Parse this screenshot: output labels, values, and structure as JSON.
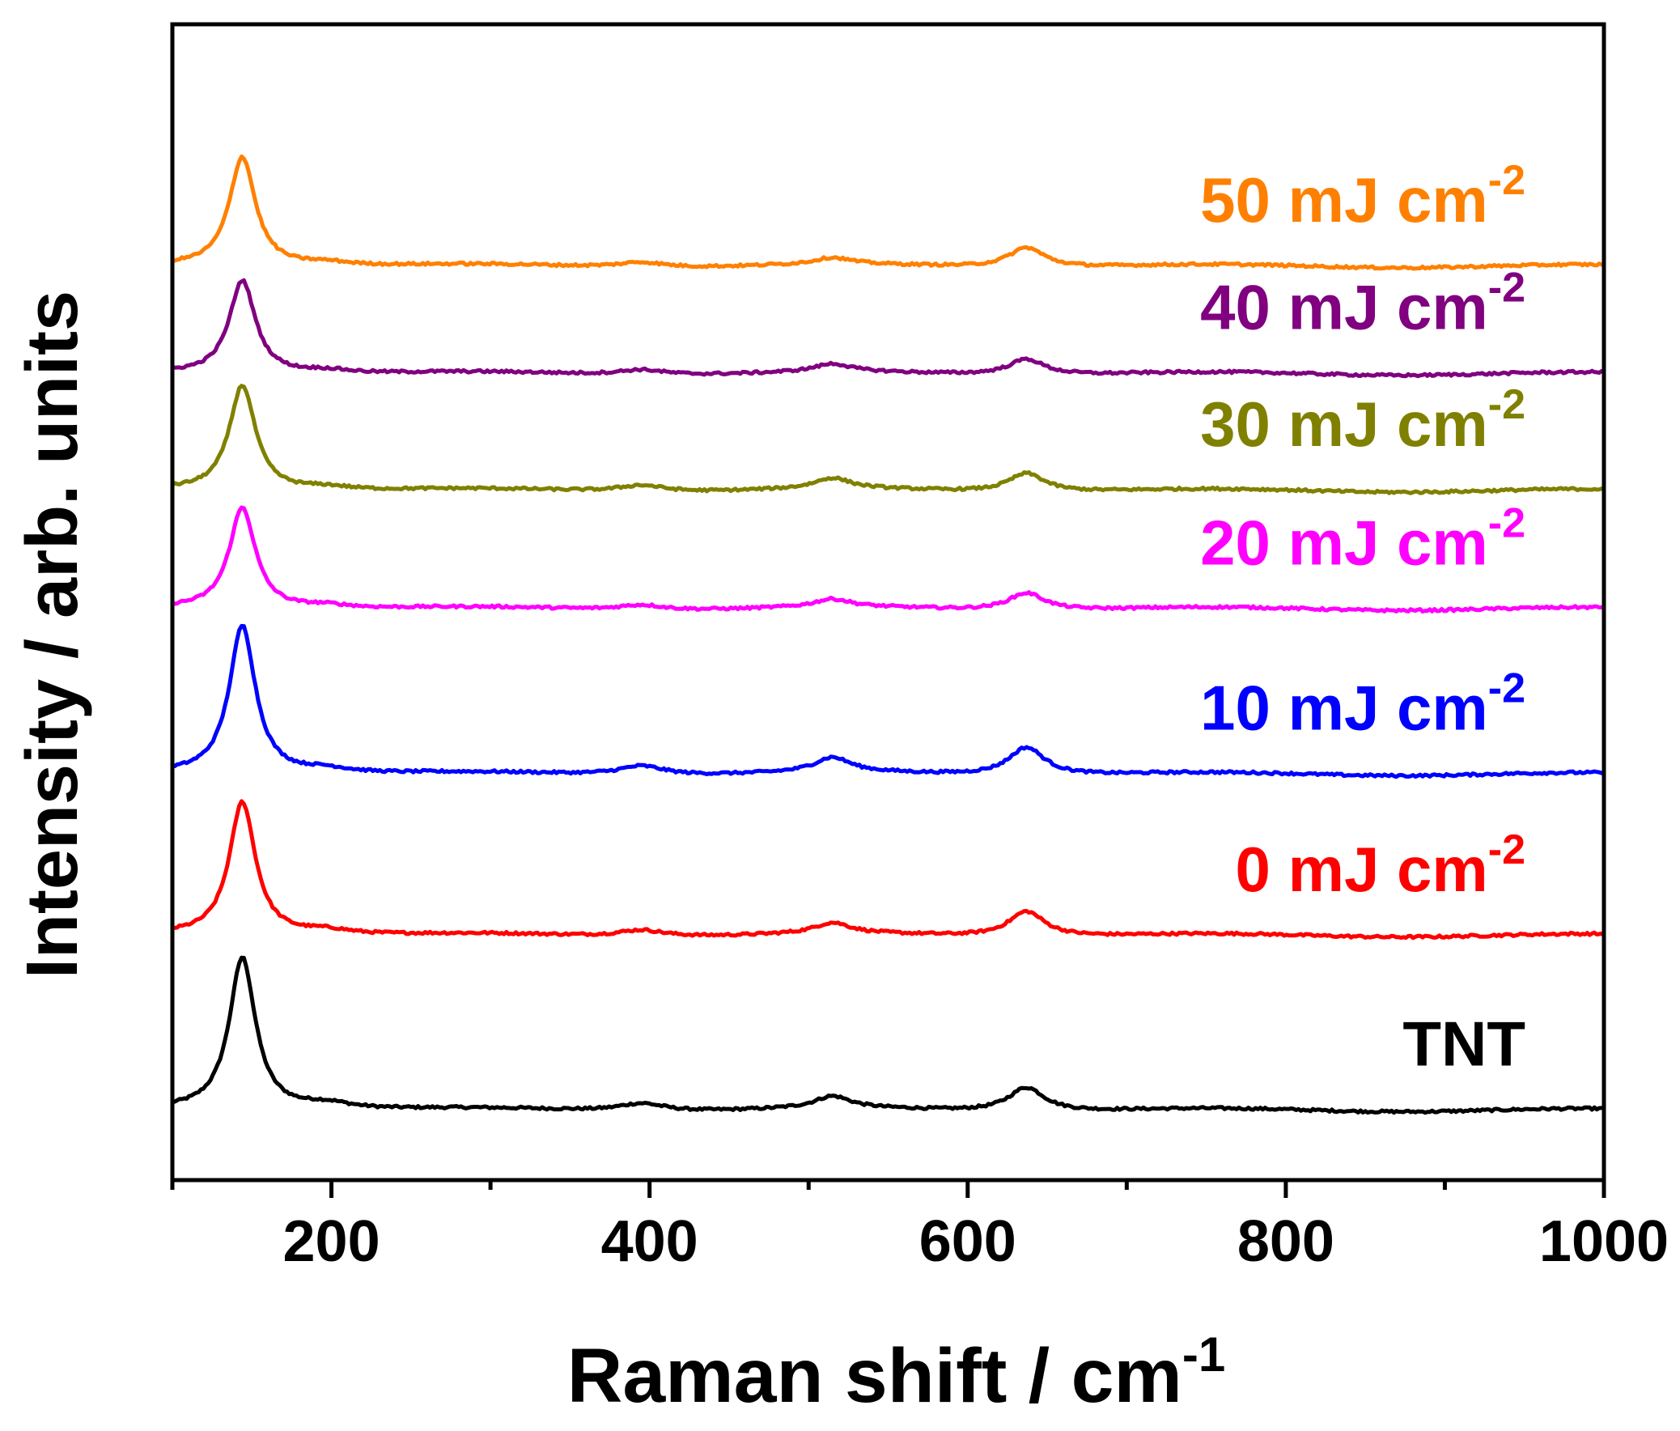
{
  "chart_data": {
    "type": "line",
    "title": "",
    "xlabel": "Raman shift / cm",
    "xlabel_sup": "-1",
    "ylabel": "Intensity / arb. units",
    "xlim": [
      100,
      1000
    ],
    "ylim": [
      0,
      8.6
    ],
    "x_ticks": [
      200,
      400,
      600,
      800,
      1000
    ],
    "x_minor_ticks": [
      100,
      300,
      500,
      700,
      900
    ],
    "y_tick_labels": false,
    "grid": false,
    "legend": "inline labels at right of each trace",
    "series": [
      {
        "name": "TNT",
        "label": "TNT",
        "label_sup": "",
        "color": "#000000",
        "baseline": 0.52,
        "peaks": [
          [
            144,
            1.14,
            10
          ],
          [
            197,
            0.05,
            20
          ],
          [
            395,
            0.06,
            18
          ],
          [
            515,
            0.09,
            14
          ],
          [
            637,
            0.18,
            14
          ]
        ]
      },
      {
        "name": "0 mJ cm-2",
        "label": "0 mJ cm",
        "label_sup": "-2",
        "color": "#ff0000",
        "baseline": 1.82,
        "peaks": [
          [
            144,
            1.0,
            10
          ],
          [
            197,
            0.04,
            20
          ],
          [
            395,
            0.05,
            18
          ],
          [
            515,
            0.08,
            14
          ],
          [
            637,
            0.19,
            14
          ]
        ]
      },
      {
        "name": "10 mJ cm-2",
        "label": "10 mJ cm",
        "label_sup": "-2",
        "color": "#0000ff",
        "baseline": 3.02,
        "peaks": [
          [
            144,
            1.11,
            10
          ],
          [
            197,
            0.04,
            20
          ],
          [
            395,
            0.07,
            18
          ],
          [
            515,
            0.11,
            14
          ],
          [
            637,
            0.21,
            14
          ]
        ]
      },
      {
        "name": "20 mJ cm-2",
        "label": "20 mJ cm",
        "label_sup": "-2",
        "color": "#ff00ff",
        "baseline": 4.25,
        "peaks": [
          [
            144,
            0.76,
            10
          ],
          [
            197,
            0.03,
            20
          ],
          [
            395,
            0.04,
            18
          ],
          [
            515,
            0.06,
            14
          ],
          [
            637,
            0.13,
            14
          ]
        ]
      },
      {
        "name": "30 mJ cm-2",
        "label": "30 mJ cm",
        "label_sup": "-2",
        "color": "#808000",
        "baseline": 5.13,
        "peaks": [
          [
            144,
            0.79,
            10
          ],
          [
            197,
            0.03,
            20
          ],
          [
            395,
            0.05,
            18
          ],
          [
            515,
            0.08,
            14
          ],
          [
            637,
            0.14,
            14
          ]
        ]
      },
      {
        "name": "40 mJ cm-2",
        "label": "40 mJ cm",
        "label_sup": "-2",
        "color": "#800080",
        "baseline": 6.0,
        "peaks": [
          [
            144,
            0.7,
            10
          ],
          [
            197,
            0.03,
            20
          ],
          [
            395,
            0.04,
            18
          ],
          [
            515,
            0.06,
            14
          ],
          [
            637,
            0.12,
            14
          ]
        ]
      },
      {
        "name": "50 mJ cm-2",
        "label": "50 mJ cm",
        "label_sup": "-2",
        "color": "#ff8000",
        "baseline": 6.8,
        "peaks": [
          [
            144,
            0.82,
            10
          ],
          [
            197,
            0.03,
            20
          ],
          [
            395,
            0.04,
            18
          ],
          [
            515,
            0.05,
            14
          ],
          [
            637,
            0.15,
            14
          ]
        ]
      }
    ]
  }
}
